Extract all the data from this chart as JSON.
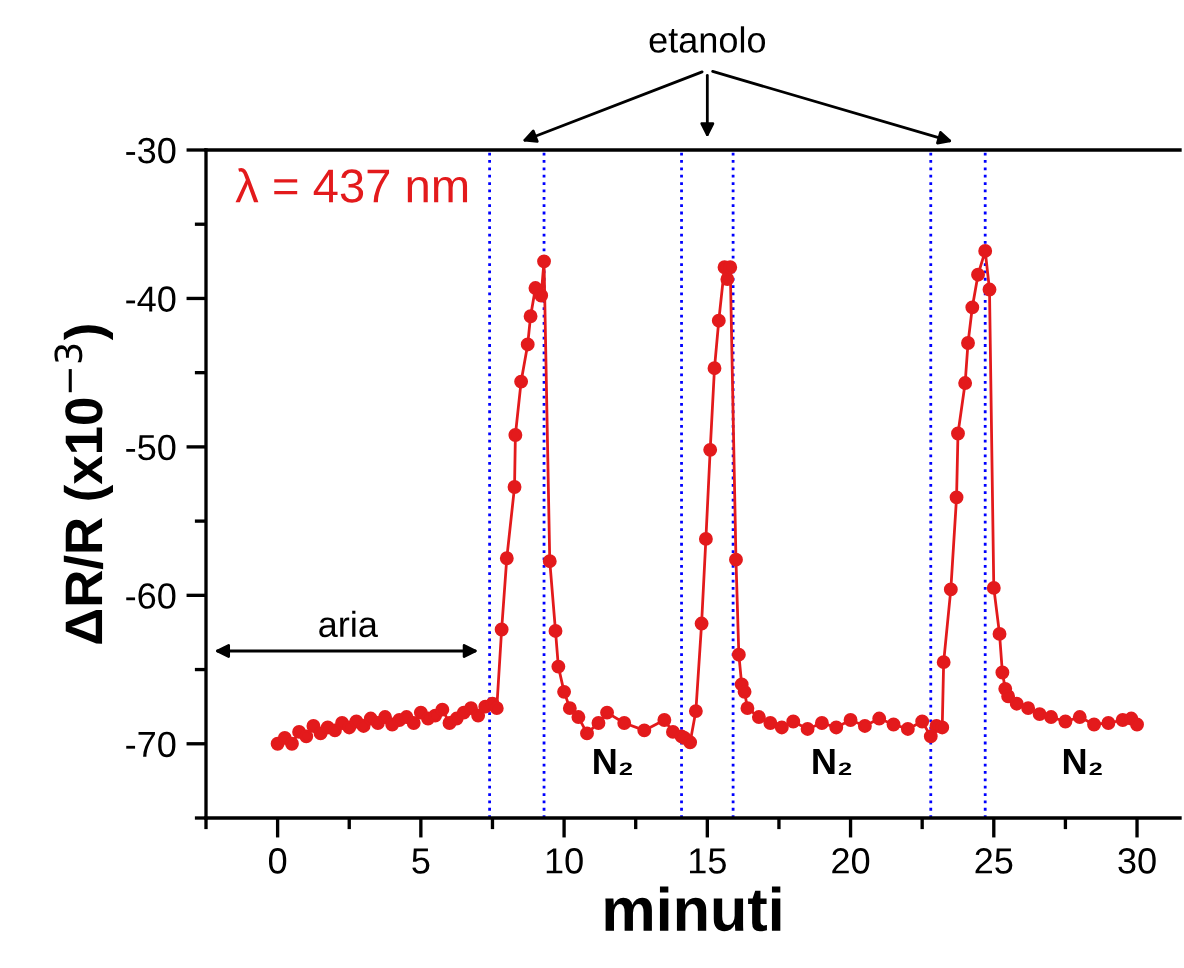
{
  "chart_data": {
    "type": "line",
    "xlabel": "minuti",
    "ylabel": "ΔR/R (x10$^{−3}$)",
    "xlim": [
      -2.5,
      31.5
    ],
    "ylim": [
      -75,
      -30
    ],
    "xticks": [
      0,
      5,
      10,
      15,
      20,
      25,
      30
    ],
    "yticks": [
      -70,
      -60,
      -50,
      -40,
      -30
    ],
    "marker": "circle",
    "line_style": "solid",
    "grid": false,
    "legend": false,
    "series": [
      {
        "color": "#e31a1c",
        "x": [
          0,
          0.25,
          0.5,
          0.75,
          1,
          1.25,
          1.5,
          1.75,
          2,
          2.25,
          2.5,
          2.75,
          3,
          3.25,
          3.5,
          3.75,
          4,
          4.25,
          4.5,
          4.75,
          5,
          5.25,
          5.5,
          5.75,
          6,
          6.25,
          6.5,
          6.75,
          7,
          7.25,
          7.5,
          7.65,
          7.82,
          8.0,
          8.27,
          8.3,
          8.5,
          8.73,
          8.83,
          9.0,
          9.2,
          9.3,
          9.5,
          9.7,
          9.8,
          10.0,
          10.2,
          10.5,
          10.8,
          11.2,
          11.5,
          12.1,
          12.8,
          13.5,
          13.8,
          14.1,
          14.2,
          14.4,
          14.6,
          14.8,
          14.95,
          15.1,
          15.25,
          15.4,
          15.6,
          15.7,
          15.8,
          16.0,
          16.1,
          16.2,
          16.3,
          16.4,
          16.8,
          17.2,
          17.6,
          18,
          18.5,
          19,
          19.5,
          20,
          20.5,
          21,
          21.5,
          22,
          22.5,
          22.8,
          23.0,
          23.2,
          23.25,
          23.5,
          23.7,
          23.75,
          24.0,
          24.1,
          24.25,
          24.45,
          24.7,
          24.85,
          25.0,
          25.2,
          25.3,
          25.4,
          25.5,
          25.8,
          26.2,
          26.6,
          27,
          27.5,
          28,
          28.5,
          29,
          29.5,
          29.8,
          30
        ],
        "values": [
          -70,
          -69.6,
          -70,
          -69.2,
          -69.5,
          -68.8,
          -69.3,
          -68.9,
          -69.1,
          -68.6,
          -68.9,
          -68.5,
          -68.8,
          -68.3,
          -68.6,
          -68.2,
          -68.7,
          -68.4,
          -68.2,
          -68.6,
          -67.9,
          -68.3,
          -68.1,
          -67.7,
          -68.6,
          -68.3,
          -67.9,
          -67.6,
          -68.1,
          -67.5,
          -67.3,
          -67.6,
          -62.3,
          -57.5,
          -52.7,
          -49.2,
          -45.6,
          -43.1,
          -41.2,
          -39.3,
          -39.8,
          -37.5,
          -57.7,
          -62.4,
          -64.8,
          -66.5,
          -67.6,
          -68.2,
          -69.3,
          -68.6,
          -67.9,
          -68.6,
          -69.1,
          -68.4,
          -69.2,
          -69.5,
          -69.6,
          -69.9,
          -67.8,
          -61.9,
          -56.2,
          -50.2,
          -44.7,
          -41.5,
          -37.9,
          -38.7,
          -37.9,
          -57.6,
          -64,
          -66,
          -66.5,
          -67.6,
          -68.2,
          -68.6,
          -68.9,
          -68.5,
          -69,
          -68.6,
          -68.9,
          -68.4,
          -68.8,
          -68.3,
          -68.7,
          -69,
          -68.5,
          -69.5,
          -68.8,
          -68.9,
          -64.5,
          -59.6,
          -53.4,
          -49.1,
          -45.7,
          -43,
          -40.6,
          -38.4,
          -36.8,
          -39.4,
          -59.5,
          -62.6,
          -65.2,
          -66.3,
          -66.8,
          -67.3,
          -67.6,
          -68,
          -68.2,
          -68.5,
          -68.2,
          -68.7,
          -68.6,
          -68.4,
          -68.3,
          -68.7
        ]
      }
    ],
    "ref_lines": [
      {
        "axis": "x",
        "value": 7.4,
        "color": "#0000ff",
        "line_style": "dotted"
      },
      {
        "axis": "x",
        "value": 9.3,
        "color": "#0000ff",
        "line_style": "dotted"
      },
      {
        "axis": "x",
        "value": 14.1,
        "color": "#0000ff",
        "line_style": "dotted"
      },
      {
        "axis": "x",
        "value": 15.9,
        "color": "#0000ff",
        "line_style": "dotted"
      },
      {
        "axis": "x",
        "value": 22.8,
        "color": "#0000ff",
        "line_style": "dotted"
      },
      {
        "axis": "x",
        "value": 24.7,
        "color": "#0000ff",
        "line_style": "dotted"
      }
    ],
    "annotations": [
      "λ = 437 nm",
      "etanolo",
      "aria",
      "N₂",
      "N₂",
      "N₂"
    ]
  }
}
